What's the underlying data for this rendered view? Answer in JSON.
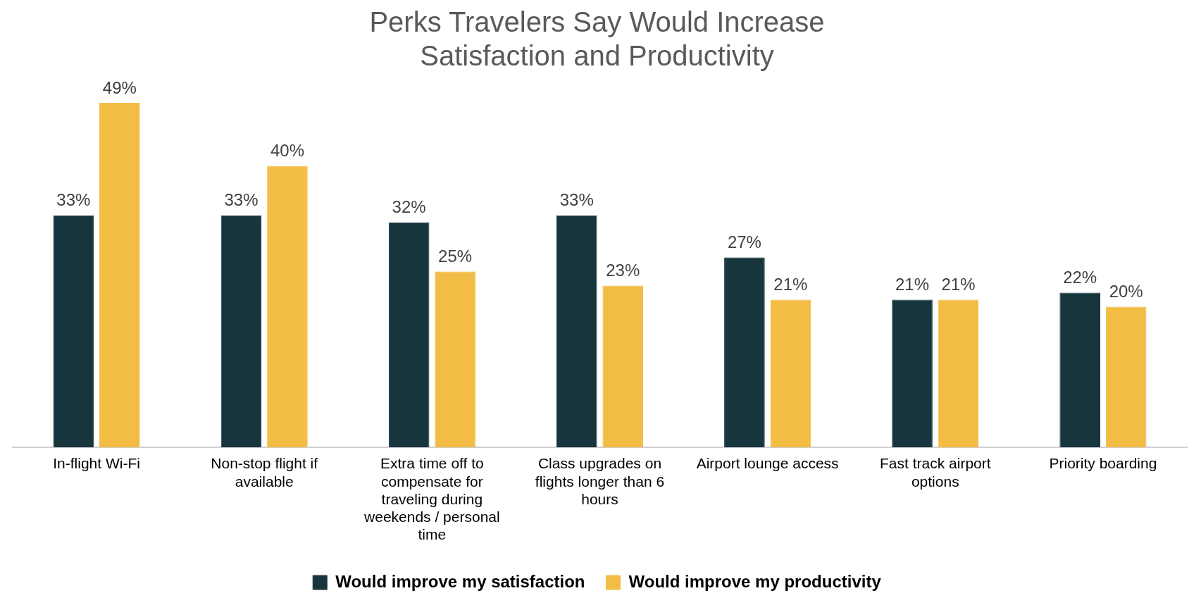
{
  "chart_data": {
    "type": "bar",
    "title": "Perks Travelers Say Would Increase Satisfaction and Productivity",
    "categories": [
      "In-flight Wi-Fi",
      "Non-stop flight if available",
      "Extra time off to compensate for traveling during weekends / personal time",
      "Class upgrades on flights longer than 6 hours",
      "Airport lounge access",
      "Fast track airport options",
      "Priority boarding"
    ],
    "series": [
      {
        "name": "Would improve my satisfaction",
        "color": "#17353d",
        "values": [
          33,
          33,
          32,
          33,
          27,
          21,
          22
        ],
        "value_labels": [
          "33%",
          "33%",
          "32%",
          "33%",
          "27%",
          "21%",
          "22%"
        ]
      },
      {
        "name": "Would improve my productivity",
        "color": "#f2bc45",
        "values": [
          49,
          40,
          25,
          23,
          21,
          21,
          20
        ],
        "value_labels": [
          "49%",
          "40%",
          "25%",
          "23%",
          "21%",
          "21%",
          "20%"
        ]
      }
    ],
    "legend": "bottom",
    "grid": false
  }
}
